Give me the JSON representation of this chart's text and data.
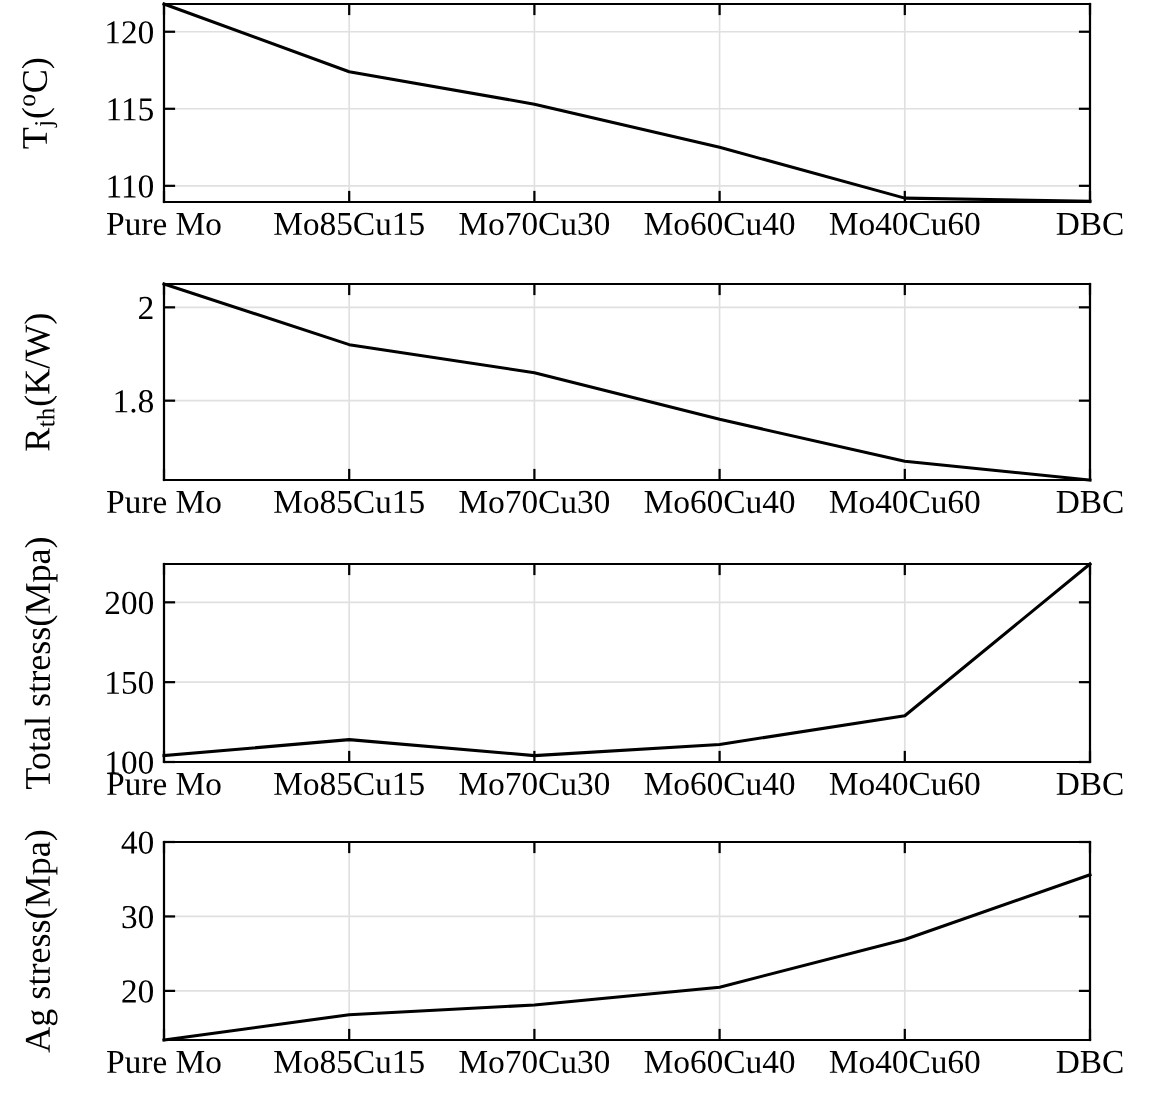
{
  "chart_data": [
    {
      "type": "line",
      "ylabel": "T$_{j}$($^{o}$C)",
      "categories": [
        "Pure Mo",
        "Mo85Cu15",
        "Mo70Cu30",
        "Mo60Cu40",
        "Mo40Cu60",
        "DBC"
      ],
      "series": [
        {
          "color": "#000000",
          "values": [
            121.8,
            117.4,
            115.3,
            112.5,
            109.2,
            109.0
          ]
        }
      ],
      "ylim": [
        108.95,
        121.8
      ],
      "yticks": [
        110,
        115,
        120
      ],
      "grid": true
    },
    {
      "type": "line",
      "ylabel": "R$_{th}$(K/W)",
      "categories": [
        "Pure Mo",
        "Mo85Cu15",
        "Mo70Cu30",
        "Mo60Cu40",
        "Mo40Cu60",
        "DBC"
      ],
      "series": [
        {
          "color": "#000000",
          "values": [
            2.05,
            1.92,
            1.86,
            1.76,
            1.67,
            1.63
          ]
        }
      ],
      "ylim": [
        1.63,
        2.05
      ],
      "yticks": [
        1.8,
        2
      ],
      "grid": true
    },
    {
      "type": "line",
      "ylabel": "Total stress(Mpa)",
      "categories": [
        "Pure Mo",
        "Mo85Cu15",
        "Mo70Cu30",
        "Mo60Cu40",
        "Mo40Cu60",
        "DBC"
      ],
      "series": [
        {
          "color": "#000000",
          "values": [
            104,
            114,
            104,
            111,
            129,
            224
          ]
        }
      ],
      "ylim": [
        100,
        224
      ],
      "yticks": [
        100,
        150,
        200
      ],
      "grid": true
    },
    {
      "type": "line",
      "ylabel": "Ag stress(Mpa)",
      "categories": [
        "Pure Mo",
        "Mo85Cu15",
        "Mo70Cu30",
        "Mo60Cu40",
        "Mo40Cu60",
        "DBC"
      ],
      "series": [
        {
          "color": "#000000",
          "values": [
            13.4,
            16.8,
            18.1,
            20.5,
            26.9,
            35.6
          ]
        }
      ],
      "ylim": [
        13.4,
        40
      ],
      "yticks": [
        20,
        30,
        40
      ],
      "grid": true
    }
  ]
}
